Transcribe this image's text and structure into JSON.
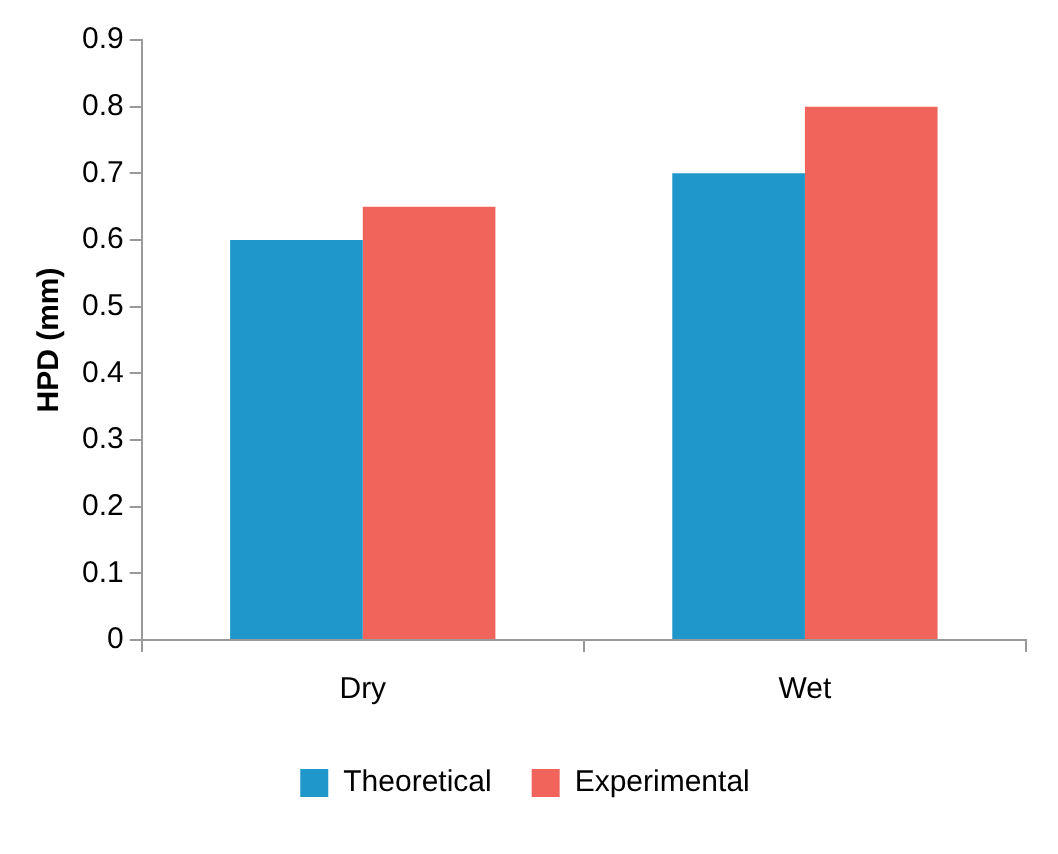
{
  "chart_data": {
    "type": "bar",
    "ylabel": "HPD (mm)",
    "categories": [
      "Dry",
      "Wet"
    ],
    "series": [
      {
        "name": "Theoretical",
        "color": "#1f97cb",
        "values": [
          0.6,
          0.7
        ]
      },
      {
        "name": "Experimental",
        "color": "#f1645c",
        "values": [
          0.65,
          0.8
        ]
      }
    ],
    "ylim": [
      0,
      0.9
    ],
    "yticks": [
      0,
      0.1,
      0.2,
      0.3,
      0.4,
      0.5,
      0.6,
      0.7,
      0.8,
      0.9
    ],
    "grid": false,
    "legend": "bottom"
  }
}
